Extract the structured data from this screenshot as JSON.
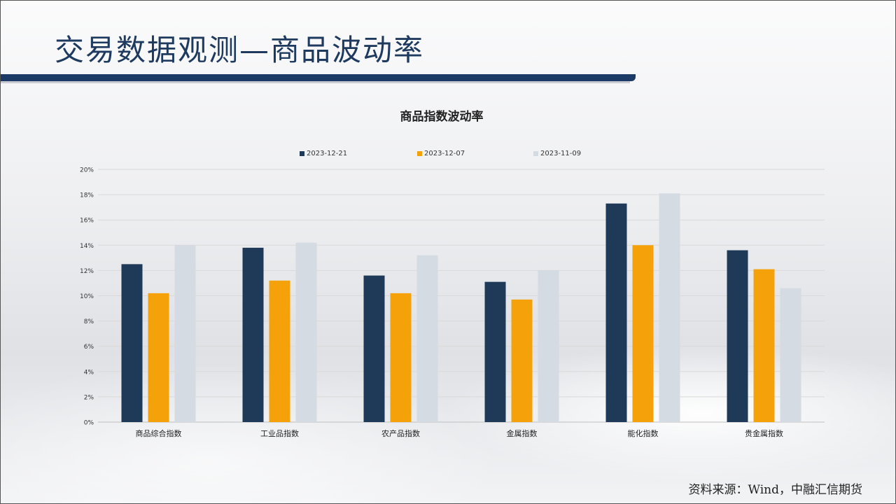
{
  "slide": {
    "title": "交易数据观测—商品波动率",
    "source": "资料来源：Wind，中融汇信期货"
  },
  "chart_data": {
    "type": "bar",
    "title": "商品指数波动率",
    "categories": [
      "商品综合指数",
      "工业品指数",
      "农产品指数",
      "金属指数",
      "能化指数",
      "贵金属指数"
    ],
    "series": [
      {
        "name": "2023-12-21",
        "color": "#1f3a58",
        "values": [
          12.5,
          13.8,
          11.6,
          11.1,
          17.3,
          13.6
        ]
      },
      {
        "name": "2023-12-07",
        "color": "#f5a20a",
        "values": [
          10.2,
          11.2,
          10.2,
          9.7,
          14.0,
          12.1
        ]
      },
      {
        "name": "2023-11-09",
        "color": "#d5dbe3",
        "values": [
          14.0,
          14.2,
          13.2,
          12.0,
          18.1,
          10.6
        ]
      }
    ],
    "ylim": [
      0,
      20
    ],
    "yticks": [
      "0%",
      "2%",
      "4%",
      "6%",
      "8%",
      "10%",
      "12%",
      "14%",
      "16%",
      "18%",
      "20%"
    ],
    "grid": true,
    "legend": "top"
  }
}
